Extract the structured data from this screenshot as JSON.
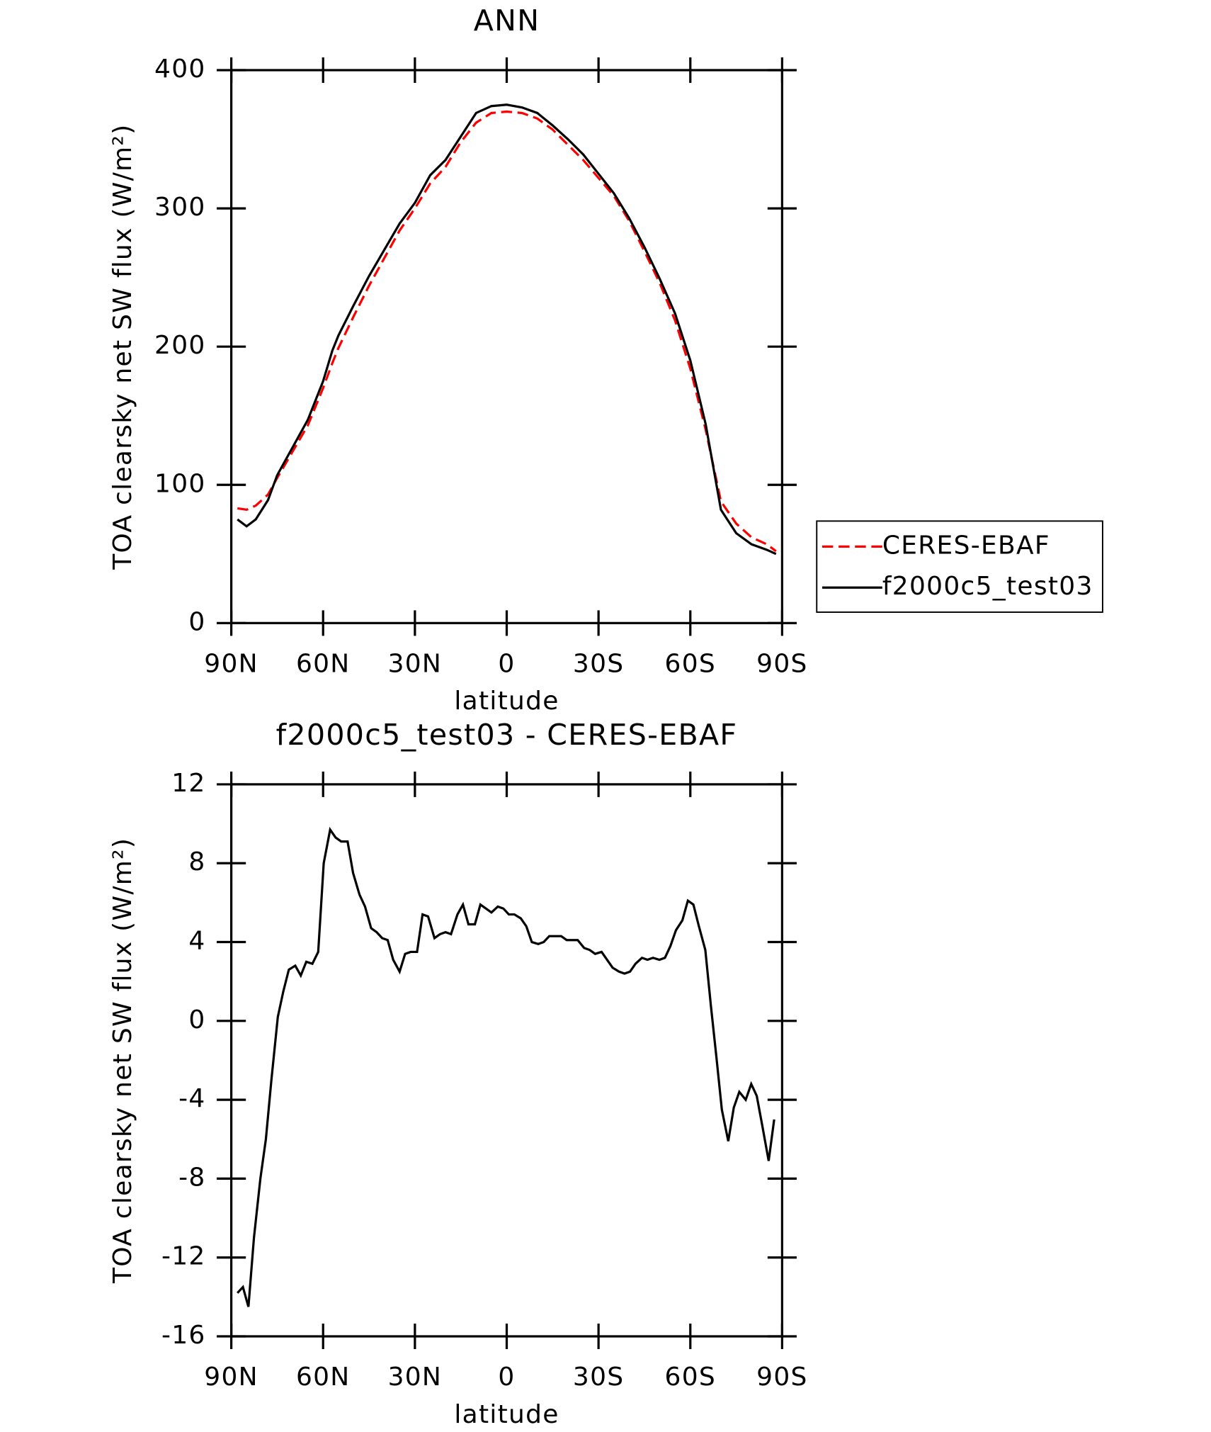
{
  "chart_data": [
    {
      "type": "line",
      "title": "ANN",
      "xlabel": "latitude",
      "ylabel": "TOA clearsky net SW flux (W/m²)",
      "xlim": [
        90,
        -90
      ],
      "ylim": [
        0,
        400
      ],
      "xticks": [
        {
          "value": 90,
          "label": "90N"
        },
        {
          "value": 60,
          "label": "60N"
        },
        {
          "value": 30,
          "label": "30N"
        },
        0,
        {
          "value": -30,
          "label": "30S"
        },
        {
          "value": -60,
          "label": "60S"
        },
        {
          "value": -90,
          "label": "90S"
        }
      ],
      "yticks": [
        0,
        100,
        200,
        300,
        400
      ],
      "legend": "right",
      "x": [
        88,
        85,
        82,
        78,
        75,
        70,
        65,
        60,
        57,
        55,
        50,
        45,
        40,
        35,
        30,
        25,
        20,
        15,
        10,
        5,
        0,
        -5,
        -10,
        -15,
        -20,
        -25,
        -30,
        -35,
        -40,
        -45,
        -50,
        -55,
        -60,
        -65,
        -70,
        -75,
        -80,
        -85,
        -88
      ],
      "series": [
        {
          "name": "CERES-EBAF",
          "color": "#ff0000",
          "dash": "dashed",
          "values": [
            83,
            82,
            85,
            93,
            105,
            124,
            143,
            170,
            188,
            199,
            222,
            244,
            264,
            284,
            300,
            318,
            330,
            348,
            362,
            369,
            370,
            369,
            365,
            357,
            346,
            335,
            322,
            309,
            291,
            269,
            246,
            219,
            184,
            140,
            88,
            72,
            62,
            57,
            52
          ]
        },
        {
          "name": "f2000c5_test03",
          "color": "#000000",
          "dash": "solid",
          "values": [
            75,
            70,
            75,
            89,
            107,
            127,
            147,
            175,
            197,
            208,
            230,
            251,
            270,
            289,
            304,
            324,
            335,
            352,
            369,
            374,
            375,
            373,
            369,
            360,
            350,
            339,
            325,
            311,
            293,
            272,
            249,
            224,
            190,
            144,
            82,
            65,
            57,
            53,
            50
          ]
        }
      ]
    },
    {
      "type": "line",
      "title": "f2000c5_test03 - CERES-EBAF",
      "xlabel": "latitude",
      "ylabel": "TOA clearsky net SW flux (W/m²)",
      "xlim": [
        90,
        -90
      ],
      "ylim": [
        -16,
        12
      ],
      "xticks": [
        {
          "value": 90,
          "label": "90N"
        },
        {
          "value": 60,
          "label": "60N"
        },
        {
          "value": 30,
          "label": "30N"
        },
        0,
        {
          "value": -30,
          "label": "30S"
        },
        {
          "value": -60,
          "label": "60S"
        },
        {
          "value": -90,
          "label": "90S"
        }
      ],
      "yticks": [
        -16,
        -12,
        -8,
        -4,
        0,
        4,
        8,
        12
      ],
      "color": "#000000",
      "x": [
        88,
        86.2,
        84.4,
        82.6,
        80.5,
        78.7,
        76.9,
        74.8,
        73,
        71.2,
        69.1,
        67.3,
        65.5,
        63.5,
        61.6,
        59.8,
        57.7,
        55.9,
        54.1,
        52,
        50.2,
        48.1,
        46.3,
        44.3,
        42.5,
        40.7,
        38.9,
        37.1,
        35,
        33.2,
        31.4,
        29.3,
        27.5,
        25.7,
        23.6,
        21.8,
        20,
        18.2,
        16.1,
        14.3,
        12.5,
        10.4,
        8.6,
        6.8,
        5,
        2.9,
        1.1,
        -0.7,
        -2.5,
        -4.6,
        -6.4,
        -8.2,
        -10.3,
        -12.1,
        -13.9,
        -15.7,
        -17.8,
        -19.6,
        -21.4,
        -23.2,
        -25.3,
        -27.1,
        -28.9,
        -31,
        -32.8,
        -34.6,
        -36.7,
        -38.5,
        -40.3,
        -42.1,
        -44.2,
        -46,
        -47.8,
        -49.9,
        -51.7,
        -53.5,
        -55.3,
        -57.4,
        -59.2,
        -61,
        -62.8,
        -64.9,
        -66.7,
        -68.5,
        -70.3,
        -72.4,
        -74.2,
        -76,
        -78.1,
        -79.9,
        -81.7,
        -83.5,
        -85.6,
        -87.4
      ],
      "values": [
        -13.8,
        -13.5,
        -14.5,
        -11,
        -8,
        -6,
        -3,
        0.2,
        1.5,
        2.6,
        2.8,
        2.3,
        3,
        2.9,
        3.5,
        8,
        9.7,
        9.3,
        9.1,
        9.1,
        7.5,
        6.4,
        5.8,
        4.7,
        4.5,
        4.2,
        4.1,
        3.1,
        2.5,
        3.4,
        3.5,
        3.5,
        5.4,
        5.3,
        4.2,
        4.4,
        4.5,
        4.4,
        5.4,
        5.9,
        4.9,
        4.9,
        5.9,
        5.7,
        5.5,
        5.8,
        5.7,
        5.4,
        5.4,
        5.2,
        4.8,
        4,
        3.9,
        4,
        4.3,
        4.3,
        4.3,
        4.1,
        4.1,
        4.1,
        3.7,
        3.6,
        3.4,
        3.5,
        3.1,
        2.7,
        2.5,
        2.4,
        2.5,
        2.9,
        3.2,
        3.1,
        3.2,
        3.1,
        3.2,
        3.8,
        4.6,
        5.1,
        6.1,
        5.9,
        4.8,
        3.6,
        0.8,
        -1.8,
        -4.5,
        -6.1,
        -4.4,
        -3.6,
        -4,
        -3.2,
        -3.8,
        -5.3,
        -7.1,
        -5
      ]
    }
  ]
}
